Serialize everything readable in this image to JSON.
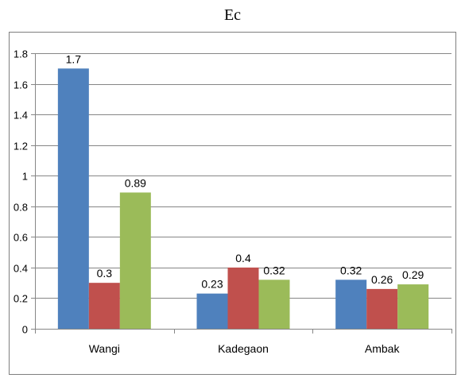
{
  "chart_data": {
    "type": "bar",
    "title": "Ec",
    "categories": [
      "Wangi",
      "Kadegaon",
      "Ambak"
    ],
    "series": [
      {
        "values": [
          1.7,
          0.23,
          0.32
        ],
        "labels": [
          "1.7",
          "0.23",
          "0.32"
        ],
        "color": "#4F81BD"
      },
      {
        "values": [
          0.3,
          0.4,
          0.26
        ],
        "labels": [
          "0.3",
          "0.4",
          "0.26"
        ],
        "color": "#C0504D"
      },
      {
        "values": [
          0.89,
          0.32,
          0.29
        ],
        "labels": [
          "0.89",
          "0.32",
          "0.29"
        ],
        "color": "#9BBB59"
      }
    ],
    "ylim": [
      0,
      1.8
    ],
    "yticks": [
      "0",
      "0.2",
      "0.4",
      "0.6",
      "0.8",
      "1",
      "1.2",
      "1.4",
      "1.6",
      "1.8"
    ],
    "grid": true,
    "legend": "none",
    "xlabel": "",
    "ylabel": ""
  }
}
